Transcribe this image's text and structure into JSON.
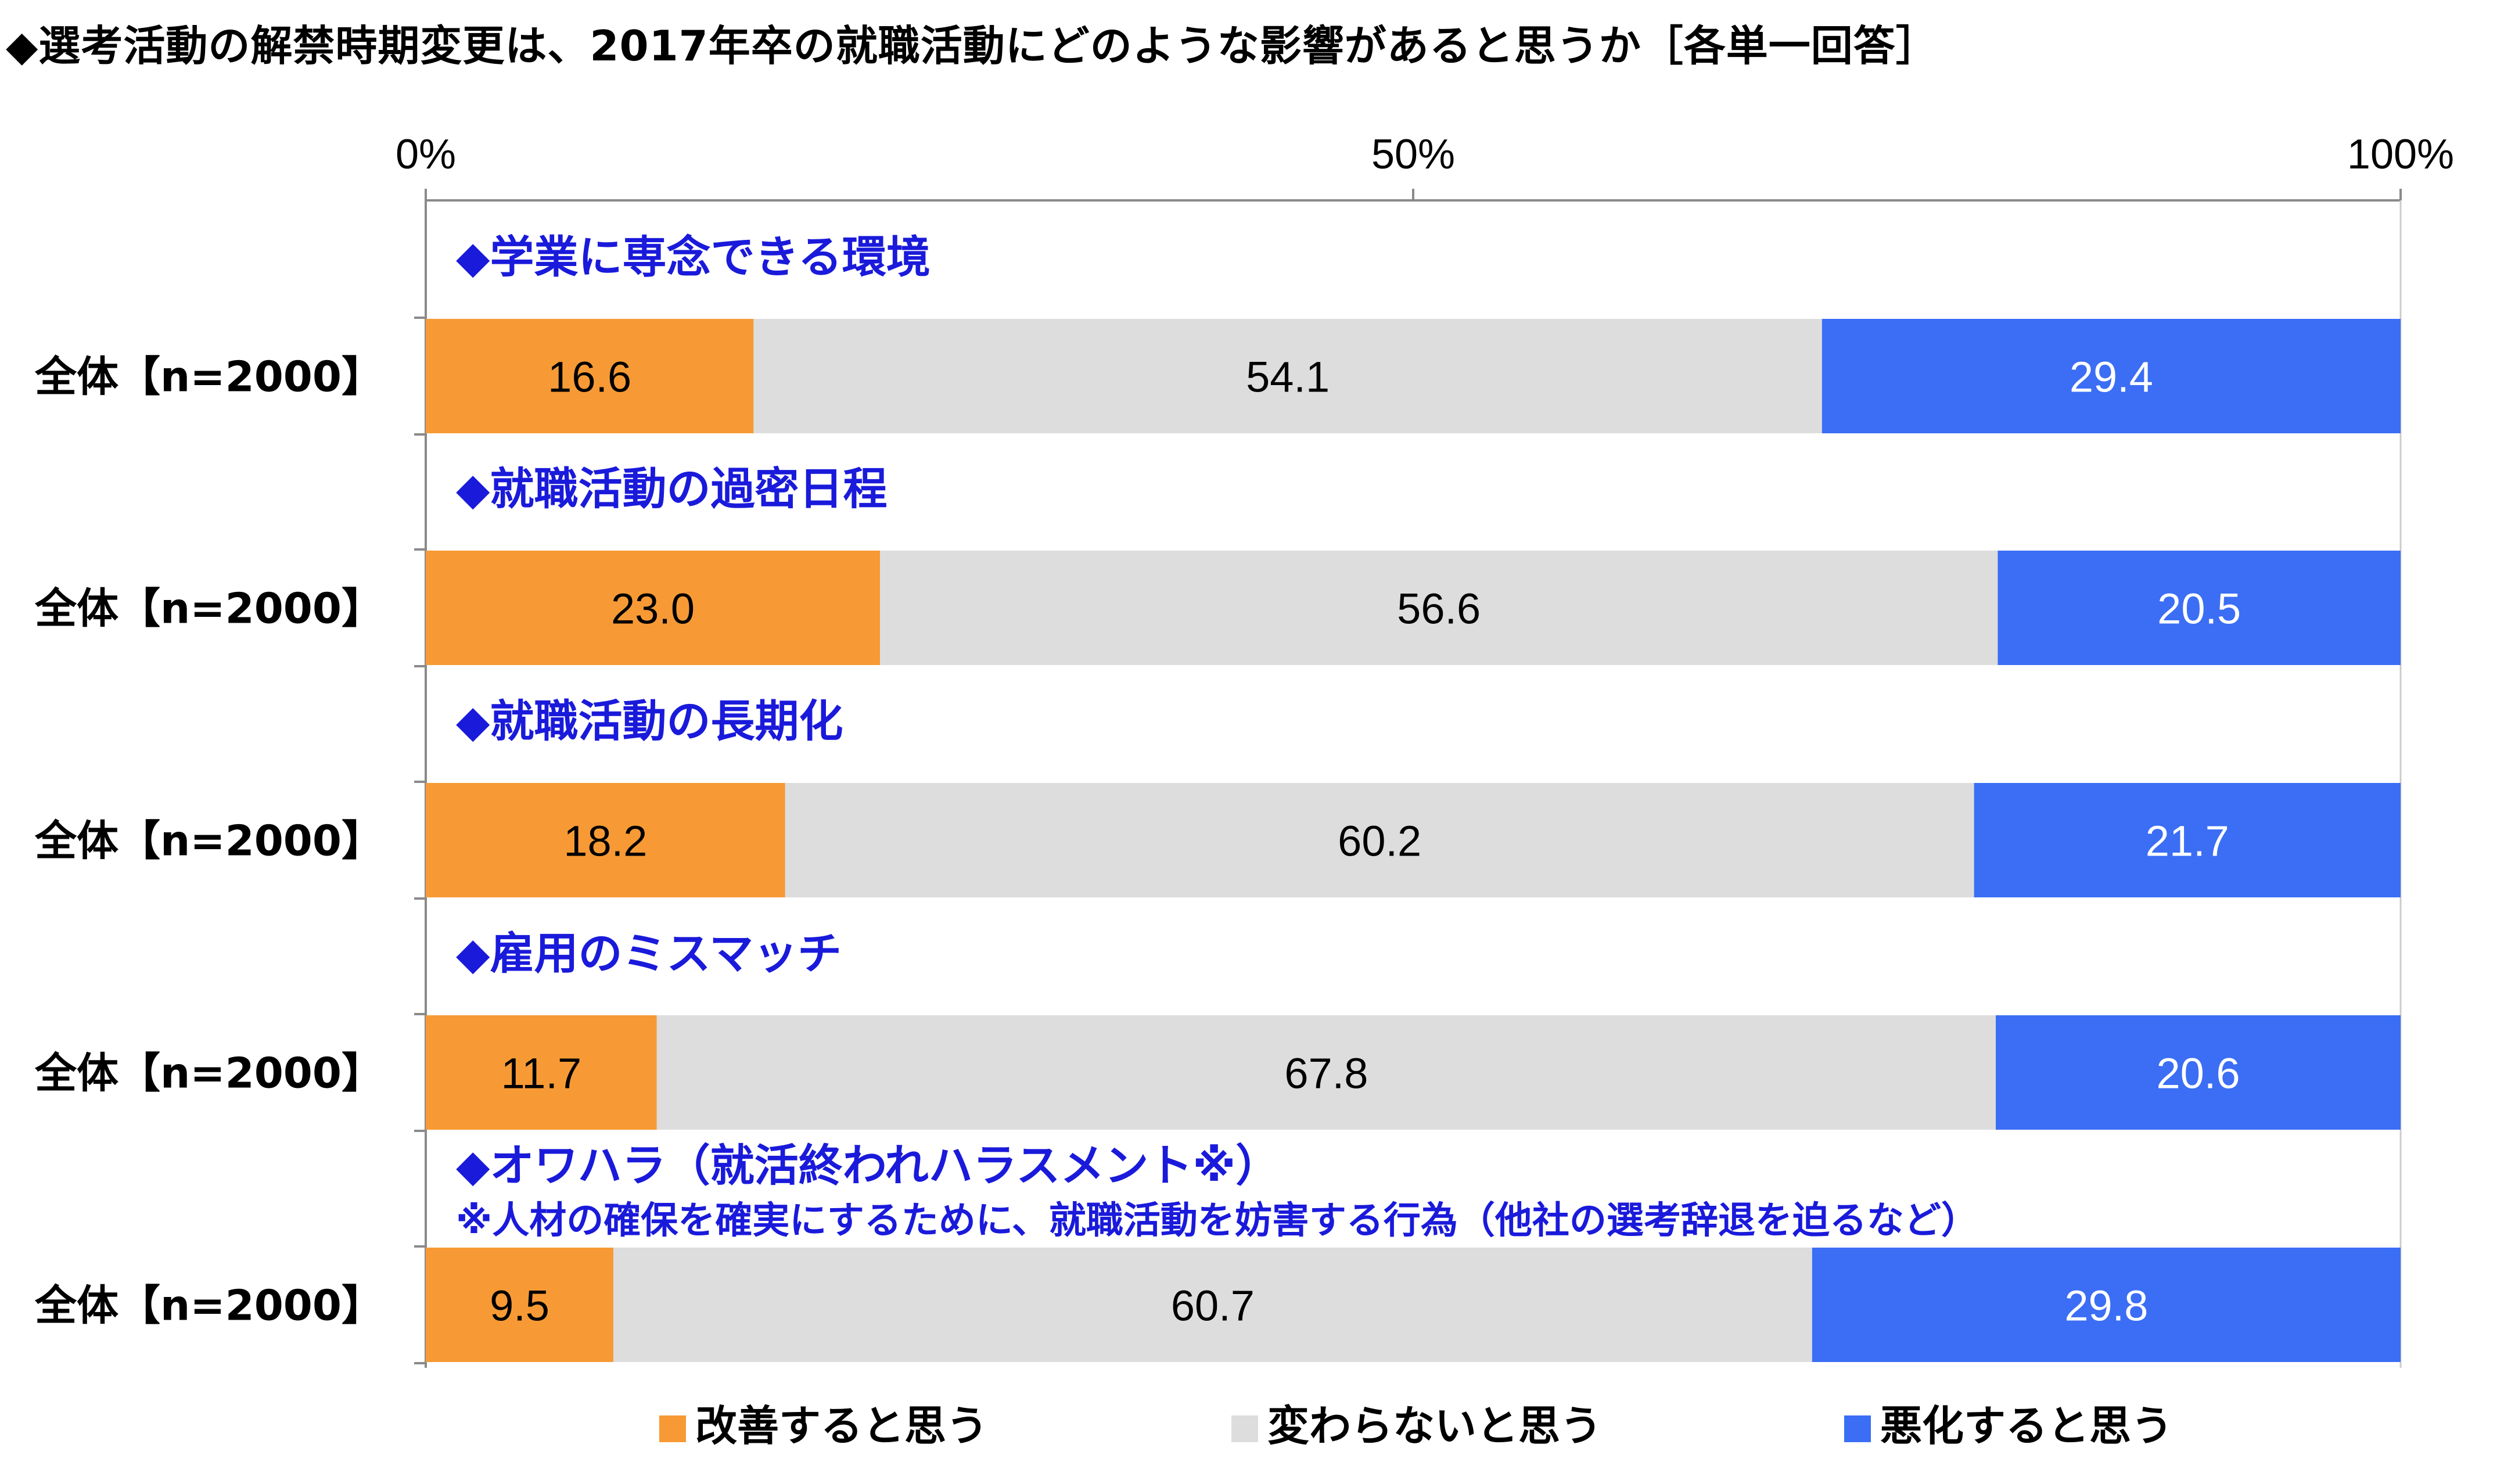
{
  "chart_data": {
    "type": "bar",
    "orientation": "horizontal",
    "stacked": true,
    "title": "◆選考活動の解禁時期変更は、2017年卒の就職活動にどのような影響があると思うか［各単一回答］",
    "x_ticks": [
      "0%",
      "50%",
      "100%"
    ],
    "xlim": [
      0,
      100
    ],
    "legend_position": "bottom",
    "series": [
      {
        "name": "改善すると思う",
        "color": "#f79a35"
      },
      {
        "name": "変わらないと思う",
        "color": "#dddddd"
      },
      {
        "name": "悪化すると思う",
        "color": "#3b6ef5"
      }
    ],
    "groups": [
      {
        "section": "◆学業に専念できる環境",
        "note": "",
        "category": "全体【n=2000】",
        "values": [
          16.6,
          54.1,
          29.4
        ],
        "labels": [
          "16.6",
          "54.1",
          "29.4"
        ]
      },
      {
        "section": "◆就職活動の過密日程",
        "note": "",
        "category": "全体【n=2000】",
        "values": [
          23.0,
          56.6,
          20.5
        ],
        "labels": [
          "23.0",
          "56.6",
          "20.5"
        ]
      },
      {
        "section": "◆就職活動の長期化",
        "note": "",
        "category": "全体【n=2000】",
        "values": [
          18.2,
          60.2,
          21.7
        ],
        "labels": [
          "18.2",
          "60.2",
          "21.7"
        ]
      },
      {
        "section": "◆雇用のミスマッチ",
        "note": "",
        "category": "全体【n=2000】",
        "values": [
          11.7,
          67.8,
          20.6
        ],
        "labels": [
          "11.7",
          "67.8",
          "20.6"
        ]
      },
      {
        "section": "◆オワハラ（就活終われハラスメント※）",
        "note": "※人材の確保を確実にするために、就職活動を妨害する行為（他社の選考辞退を迫るなど）",
        "category": "全体【n=2000】",
        "values": [
          9.5,
          60.7,
          29.8
        ],
        "labels": [
          "9.5",
          "60.7",
          "29.8"
        ]
      }
    ]
  }
}
